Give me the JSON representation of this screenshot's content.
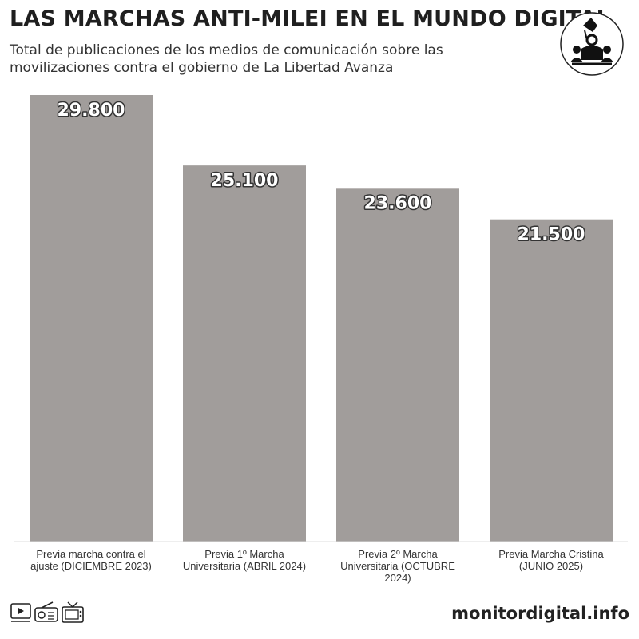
{
  "header": {
    "title": "LAS MARCHAS ANTI-MILEI EN EL MUNDO DIGITAL",
    "subtitle": "Total de publicaciones de los medios de comunicación sobre las movilizaciones contra el gobierno de La Libertad Avanza"
  },
  "footer": {
    "site": "monitordigital.info",
    "icons": [
      "media-player-icon",
      "radio-icon",
      "tv-icon"
    ]
  },
  "logo": {
    "icon": "protest-raised-fist-icon"
  },
  "colors": {
    "bar": "#a19d9b",
    "text": "#222222",
    "label_fill": "#ffffff"
  },
  "chart_data": {
    "type": "bar",
    "categories": [
      "Previa marcha contra el ajuste (DICIEMBRE 2023)",
      "Previa 1º Marcha Universitaria (ABRIL 2024)",
      "Previa 2º Marcha Universitaria (OCTUBRE 2024)",
      "Previa Marcha Cristina (JUNIO 2025)"
    ],
    "category_lines": [
      [
        "Previa marcha contra el",
        "ajuste (DICIEMBRE 2023)"
      ],
      [
        "Previa 1º Marcha",
        "Universitaria (ABRIL 2024)"
      ],
      [
        "Previa 2º Marcha",
        "Universitaria (OCTUBRE",
        "2024)"
      ],
      [
        "Previa Marcha Cristina",
        "(JUNIO 2025)"
      ]
    ],
    "values": [
      29800,
      25100,
      23600,
      21500
    ],
    "value_labels": [
      "29.800",
      "25.100",
      "23.600",
      "21.500"
    ],
    "ylim": [
      0,
      29800
    ],
    "grid": false,
    "legend": "none"
  }
}
